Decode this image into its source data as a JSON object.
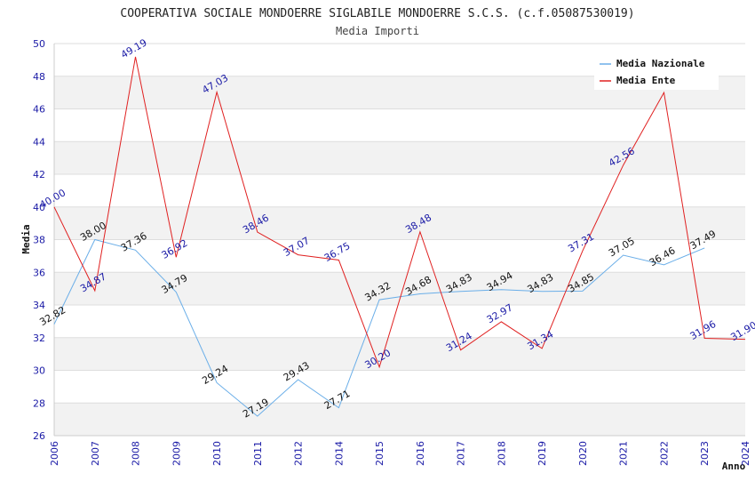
{
  "chart_data": {
    "type": "line",
    "title": "COOPERATIVA SOCIALE MONDOERRE SIGLABILE MONDOERRE S.C.S. (c.f.05087530019)",
    "subtitle": "Media Importi",
    "xlabel": "Anno",
    "ylabel": "Media",
    "ylim": [
      26,
      50
    ],
    "yticks": [
      26,
      28,
      30,
      32,
      34,
      36,
      38,
      40,
      42,
      44,
      46,
      48,
      50
    ],
    "x": [
      "2006",
      "2007",
      "2008",
      "2009",
      "2010",
      "2011",
      "2012",
      "2014",
      "2015",
      "2016",
      "2017",
      "2018",
      "2019",
      "2020",
      "2021",
      "2022",
      "2023",
      "2024"
    ],
    "legend_position": "top-right",
    "grid": true,
    "series": [
      {
        "name": "Media Nazionale",
        "color": "#6aaee8",
        "label_color": "#111111",
        "values": [
          32.82,
          38.0,
          37.36,
          34.79,
          29.24,
          27.19,
          29.43,
          27.71,
          34.32,
          34.68,
          34.83,
          34.94,
          34.83,
          34.85,
          37.05,
          36.46,
          37.49,
          null
        ],
        "labels": [
          "32.82",
          "38.00",
          "37.36",
          "34.79",
          "29.24",
          "27.19",
          "29.43",
          "27.71",
          "34.32",
          "34.68",
          "34.83",
          "34.94",
          "34.83",
          "34.85",
          "37.05",
          "36.46",
          "37.49",
          null
        ]
      },
      {
        "name": "Media Ente",
        "color": "#e02020",
        "label_color": "#1a1aa6",
        "values": [
          40.0,
          34.87,
          49.19,
          36.92,
          47.03,
          38.46,
          37.07,
          36.75,
          30.2,
          38.48,
          31.24,
          32.97,
          31.34,
          37.31,
          42.56,
          47.0,
          31.96,
          31.9
        ],
        "labels": [
          "40.00",
          "34.87",
          "49.19",
          "36.92",
          "47.03",
          "38.46",
          "37.07",
          "36.75",
          "30.20",
          "38.48",
          "31.24",
          "32.97",
          "31.34",
          "37.31",
          "42.56",
          null,
          "31.96",
          "31.90"
        ]
      }
    ]
  }
}
